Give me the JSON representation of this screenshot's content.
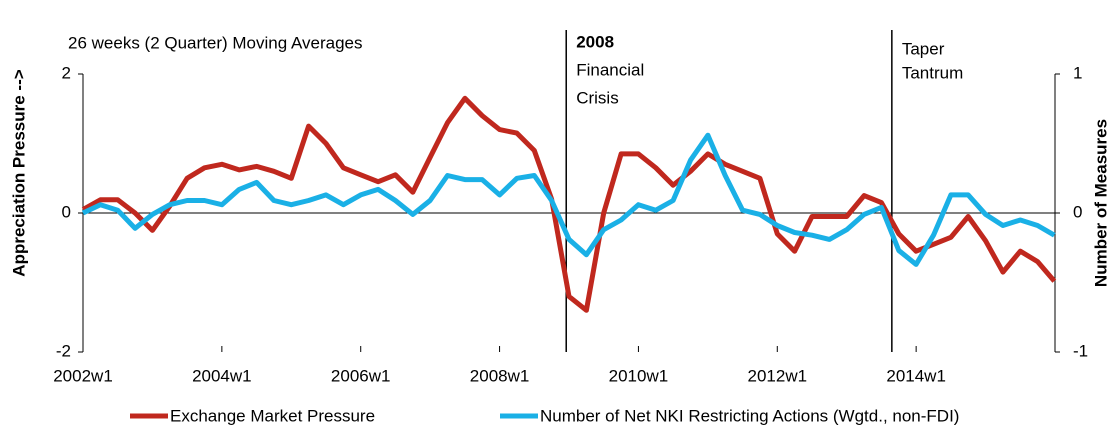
{
  "chart_data": {
    "type": "line",
    "title": "26 weeks (2 Quarter) Moving Averages",
    "y_label": "Appreciation Pressure -->",
    "y2_label": "Number of Measures",
    "x": [
      2002,
      2002.25,
      2002.5,
      2002.75,
      2003,
      2003.25,
      2003.5,
      2003.75,
      2004,
      2004.25,
      2004.5,
      2004.75,
      2005,
      2005.25,
      2005.5,
      2005.75,
      2006,
      2006.25,
      2006.5,
      2006.75,
      2007,
      2007.25,
      2007.5,
      2007.75,
      2008,
      2008.25,
      2008.5,
      2008.75,
      2009,
      2009.25,
      2009.5,
      2009.75,
      2010,
      2010.25,
      2010.5,
      2010.75,
      2011,
      2011.25,
      2011.5,
      2011.75,
      2012,
      2012.25,
      2012.5,
      2012.75,
      2013,
      2013.25,
      2013.5,
      2013.75,
      2014,
      2014.25,
      2014.5,
      2014.75,
      2015,
      2015.25,
      2015.5,
      2015.75,
      2015.99
    ],
    "xlim": [
      2002,
      2016
    ],
    "xticks": [
      {
        "value": 2002,
        "label": "2002w1"
      },
      {
        "value": 2004,
        "label": "2004w1"
      },
      {
        "value": 2006,
        "label": "2006w1"
      },
      {
        "value": 2008,
        "label": "2008w1"
      },
      {
        "value": 2010,
        "label": "2010w1"
      },
      {
        "value": 2012,
        "label": "2012w1"
      },
      {
        "value": 2014,
        "label": "2014w1"
      }
    ],
    "ylim": [
      -2,
      2
    ],
    "yticks": [
      -2,
      0,
      2
    ],
    "y2lim": [
      -1,
      1
    ],
    "y2ticks": [
      -1,
      0,
      1
    ],
    "series": [
      {
        "name": "Exchange Market Pressure",
        "color": "#c0281e",
        "axis": "y",
        "values": [
          0.05,
          0.19,
          0.19,
          0,
          -0.25,
          0.1,
          0.5,
          0.65,
          0.7,
          0.62,
          0.67,
          0.6,
          0.5,
          1.25,
          1.0,
          0.65,
          0.55,
          0.45,
          0.55,
          0.3,
          0.8,
          1.3,
          1.65,
          1.4,
          1.2,
          1.15,
          0.9,
          0.2,
          -1.2,
          -1.4,
          0.0,
          0.85,
          0.85,
          0.65,
          0.4,
          0.6,
          0.85,
          0.7,
          0.6,
          0.5,
          -0.3,
          -0.55,
          -0.05,
          -0.05,
          -0.05,
          0.25,
          0.15,
          -0.3,
          -0.55,
          -0.45,
          -0.35,
          -0.05,
          -0.4,
          -0.85,
          -0.55,
          -0.7,
          -0.98
        ]
      },
      {
        "name": "Number of Net NKI Restricting Actions  (Wgtd., non-FDI)",
        "color": "#1ab0e6",
        "axis": "y2",
        "values": [
          0,
          0.06,
          0.02,
          -0.11,
          -0.01,
          0.06,
          0.09,
          0.09,
          0.06,
          0.17,
          0.22,
          0.09,
          0.06,
          0.09,
          0.13,
          0.06,
          0.13,
          0.17,
          0.09,
          -0.01,
          0.09,
          0.27,
          0.24,
          0.24,
          0.13,
          0.25,
          0.27,
          0.09,
          -0.19,
          -0.3,
          -0.12,
          -0.05,
          0.06,
          0.02,
          0.09,
          0.38,
          0.56,
          0.27,
          0.02,
          -0.01,
          -0.09,
          -0.14,
          -0.16,
          -0.19,
          -0.12,
          -0.01,
          0.04,
          -0.27,
          -0.37,
          -0.16,
          0.13,
          0.13,
          -0.01,
          -0.09,
          -0.05,
          -0.09,
          -0.16
        ]
      }
    ],
    "annotations": [
      {
        "x": 2008.96,
        "lines": [
          "2008",
          "Financial",
          "Crisis"
        ]
      },
      {
        "x": 2013.65,
        "lines": [
          "Taper",
          "Tantrum"
        ]
      }
    ]
  }
}
